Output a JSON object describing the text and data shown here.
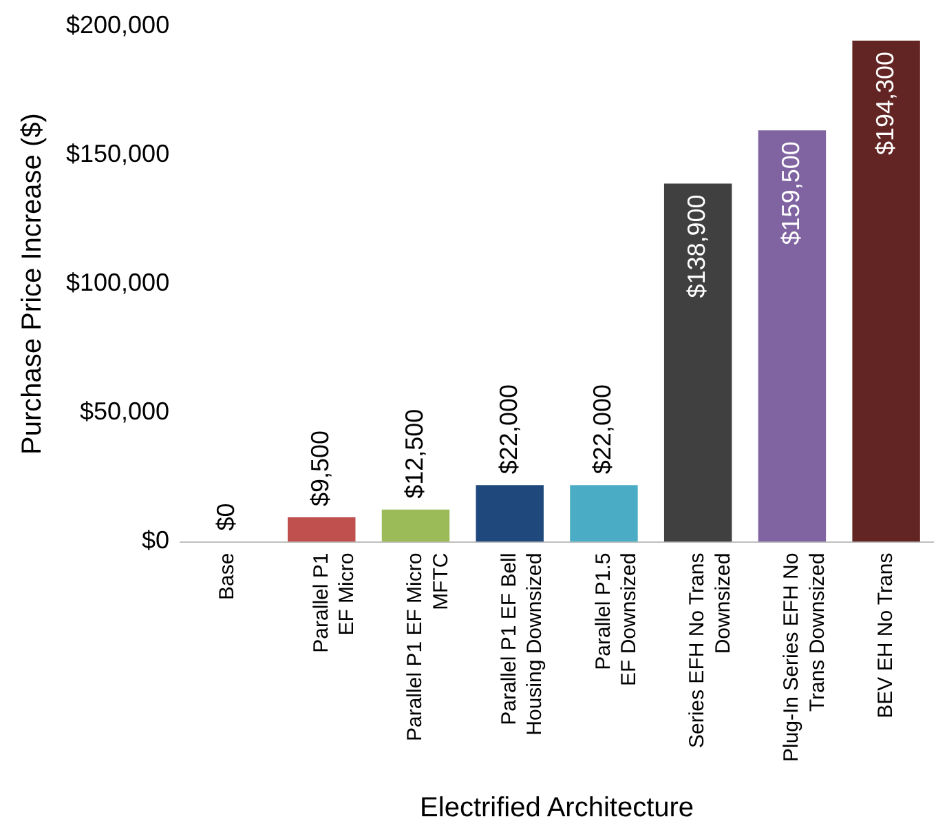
{
  "chart_data": {
    "type": "bar",
    "xlabel": "Electrified Architecture",
    "ylabel": "Purchase Price Increase ($)",
    "categories": [
      "Base",
      "Parallel P1\nEF Micro",
      "Parallel P1 EF Micro\nMFTC",
      "Parallel P1 EF Bell\nHousing Downsized",
      "Parallel P1.5\nEF Downsized",
      "Series EFH No Trans\nDownsized",
      "Plug-In Series EFH No\nTrans Downsized",
      "BEV EH No Trans"
    ],
    "values": [
      0,
      9500,
      12500,
      22000,
      22000,
      138900,
      159500,
      194300
    ],
    "colors": [
      "#4f81bd",
      "#c0504d",
      "#9bbb59",
      "#1f497d",
      "#4bacc6",
      "#404040",
      "#8064a2",
      "#632523"
    ],
    "value_labels": [
      "$0",
      "$9,500",
      "$12,500",
      "$22,000",
      "$22,000",
      "$138,900",
      "$159,500",
      "$194,300"
    ],
    "ylim": [
      0,
      200000
    ],
    "yticks": [
      {
        "value": 0,
        "label": "$0"
      },
      {
        "value": 50000,
        "label": "$50,000"
      },
      {
        "value": 100000,
        "label": "$100,000"
      },
      {
        "value": 150000,
        "label": "$150,000"
      },
      {
        "value": 200000,
        "label": "$200,000"
      }
    ],
    "grid": false,
    "legend": false
  }
}
